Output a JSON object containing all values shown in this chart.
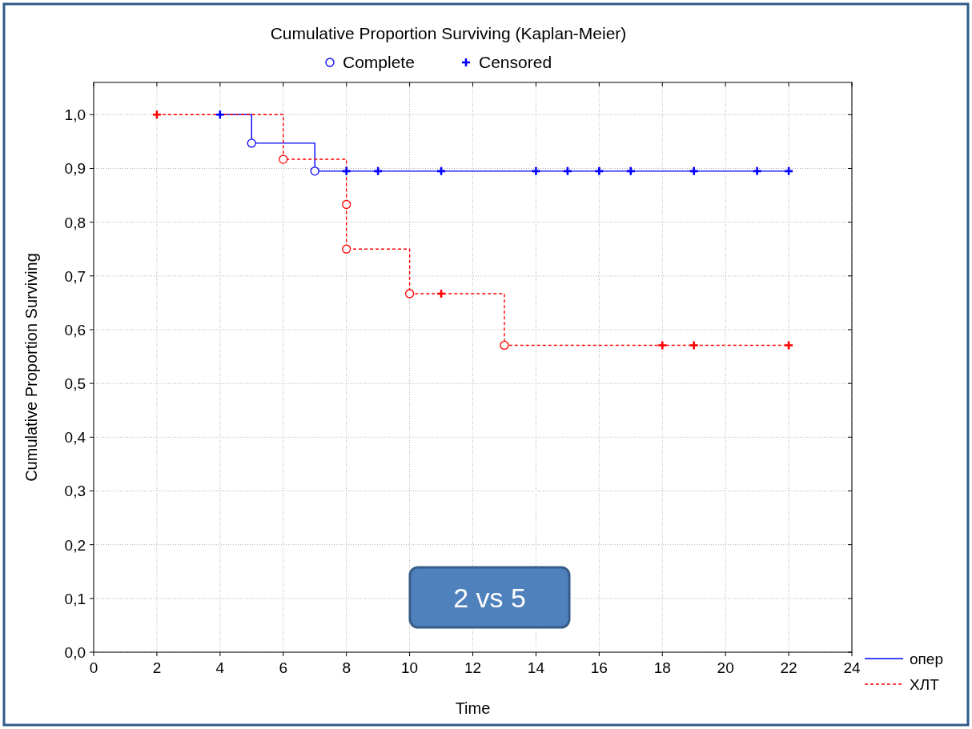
{
  "chart_data": {
    "type": "step",
    "title": "Cumulative Proportion Surviving (Kaplan-Meier)",
    "xlabel": "Time",
    "ylabel": "Cumulative Proportion Surviving",
    "xlim": [
      0,
      24
    ],
    "xticks": [
      0,
      2,
      4,
      6,
      8,
      10,
      12,
      14,
      16,
      18,
      20,
      22,
      24
    ],
    "ylim": [
      0,
      1.06
    ],
    "yticks": [
      {
        "value": 0,
        "label": "0,0"
      },
      {
        "value": 0.1,
        "label": "0,1"
      },
      {
        "value": 0.2,
        "label": "0,2"
      },
      {
        "value": 0.3,
        "label": "0,3"
      },
      {
        "value": 0.4,
        "label": "0,4"
      },
      {
        "value": 0.5,
        "label": "0,5"
      },
      {
        "value": 0.6,
        "label": "0,6"
      },
      {
        "value": 0.7,
        "label": "0,7"
      },
      {
        "value": 0.8,
        "label": "0,8"
      },
      {
        "value": 0.9,
        "label": "0,9"
      },
      {
        "value": 1,
        "label": "1,0"
      }
    ],
    "grid": true,
    "legend": "bottom right",
    "annotations": [
      "2 vs 5"
    ],
    "series": [
      {
        "name": "опер",
        "color": "#0000ff",
        "line_style": "solid",
        "x": [
          4,
          5,
          7,
          22
        ],
        "values": [
          1,
          0.947,
          0.895,
          0.895
        ]
      },
      {
        "name": "ХЛТ",
        "color": "#ff0000",
        "line_style": "dashed",
        "x": [
          2,
          6,
          8,
          8,
          10,
          13,
          22
        ],
        "values": [
          1,
          0.917,
          0.833,
          0.75,
          0.667,
          0.571,
          0.571
        ]
      },
      {
        "type": "scatter",
        "name": "Complete",
        "marker": "circle",
        "color": "#0000ff",
        "colors": [
          "#0000ff",
          "#0000ff",
          "#ff0000",
          "#ff0000",
          "#ff0000",
          "#ff0000",
          "#ff0000"
        ],
        "x": [
          5,
          7,
          6,
          8,
          8,
          10,
          13
        ],
        "values": [
          0.947,
          0.895,
          0.917,
          0.833,
          0.75,
          0.667,
          0.571
        ]
      },
      {
        "type": "scatter",
        "name": "Censored",
        "marker": "cross",
        "color": "#0000ff",
        "colors": [
          "#0000ff",
          "#0000ff",
          "#0000ff",
          "#0000ff",
          "#0000ff",
          "#0000ff",
          "#0000ff",
          "#0000ff",
          "#0000ff",
          "#0000ff",
          "#0000ff",
          "#ff0000",
          "#ff0000",
          "#ff0000",
          "#ff0000",
          "#ff0000"
        ],
        "x": [
          4,
          8,
          9,
          11,
          14,
          15,
          16,
          17,
          19,
          21,
          22,
          2,
          11,
          18,
          19,
          22
        ],
        "values": [
          1,
          0.895,
          0.895,
          0.895,
          0.895,
          0.895,
          0.895,
          0.895,
          0.895,
          0.895,
          0.895,
          1,
          0.667,
          0.571,
          0.571,
          0.571
        ]
      }
    ]
  }
}
